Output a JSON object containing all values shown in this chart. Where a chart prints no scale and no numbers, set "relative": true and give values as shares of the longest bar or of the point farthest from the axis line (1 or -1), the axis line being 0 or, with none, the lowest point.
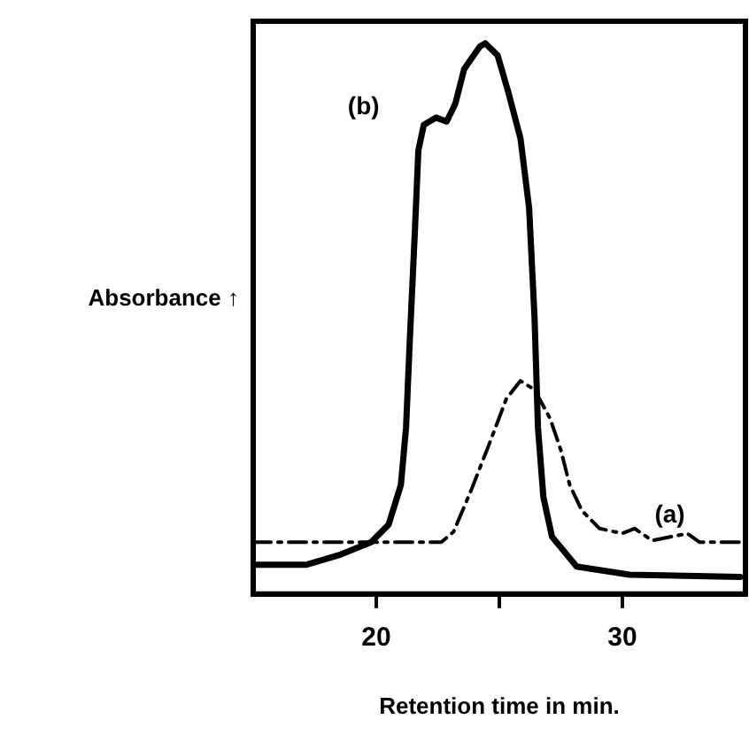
{
  "chart_data": {
    "type": "line",
    "xlabel": "Retention time in min.",
    "ylabel": "Absorbance ↑",
    "relative": true,
    "xlim": [
      15,
      35
    ],
    "xticks": [
      20,
      {
        "value": 25,
        "label": null
      },
      30
    ],
    "grid": false,
    "legend": false,
    "marker": "none",
    "series": [
      {
        "name": "(a)",
        "color": "#000000",
        "line_style": "dashed",
        "x": [
          15,
          22.64,
          23.14,
          23.86,
          24.57,
          25.29,
          25.86,
          26.43,
          27.07,
          27.5,
          27.86,
          28.36,
          29.07,
          30.0,
          30.5,
          31.21,
          32.64,
          33.14,
          34.93
        ],
        "values": [
          0.094,
          0.094,
          0.113,
          0.189,
          0.27,
          0.355,
          0.387,
          0.371,
          0.318,
          0.261,
          0.198,
          0.151,
          0.119,
          0.11,
          0.119,
          0.097,
          0.11,
          0.094,
          0.094
        ]
      },
      {
        "name": "(b)",
        "color": "#000000",
        "line_style": "solid",
        "x": [
          15,
          17.14,
          18.57,
          19.79,
          20.5,
          21.0,
          21.21,
          21.36,
          21.57,
          21.71,
          21.93,
          22.43,
          22.86,
          23.21,
          23.57,
          24.21,
          24.43,
          24.93,
          25.36,
          25.86,
          26.21,
          26.43,
          26.57,
          26.79,
          27.14,
          28.14,
          30.29,
          34.79
        ],
        "values": [
          0.053,
          0.053,
          0.072,
          0.094,
          0.126,
          0.198,
          0.302,
          0.459,
          0.66,
          0.805,
          0.852,
          0.865,
          0.858,
          0.89,
          0.953,
          0.994,
          1,
          0.978,
          0.912,
          0.827,
          0.701,
          0.503,
          0.302,
          0.176,
          0.104,
          0.05,
          0.035,
          0.031
        ]
      }
    ]
  }
}
